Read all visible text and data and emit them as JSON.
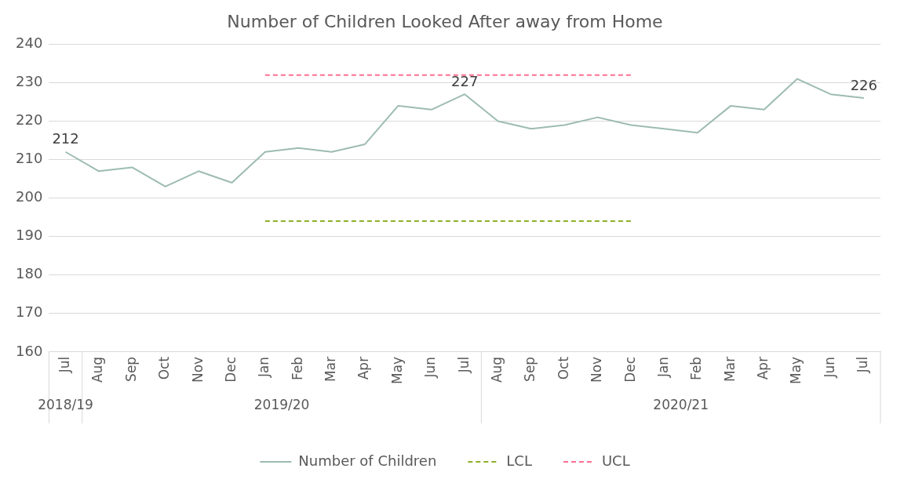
{
  "chart_data": {
    "type": "line",
    "title": "Number of Children Looked After away from Home",
    "categories": [
      "Jul",
      "Aug",
      "Sep",
      "Oct",
      "Nov",
      "Dec",
      "Jan",
      "Feb",
      "Mar",
      "Apr",
      "May",
      "Jun",
      "Jul",
      "Aug",
      "Sep",
      "Oct",
      "Nov",
      "Dec",
      "Jan",
      "Feb",
      "Mar",
      "Apr",
      "May",
      "Jun",
      "Jul"
    ],
    "series": [
      {
        "name": "Number of Children",
        "color": "#9dbcb0",
        "line_style": "solid",
        "values": [
          212,
          207,
          208,
          203,
          207,
          204,
          212,
          213,
          212,
          214,
          224,
          223,
          227,
          220,
          218,
          219,
          221,
          219,
          218,
          217,
          224,
          223,
          231,
          227,
          226
        ],
        "value_labels": [
          "212",
          null,
          null,
          null,
          null,
          null,
          null,
          null,
          null,
          null,
          null,
          null,
          "227",
          null,
          null,
          null,
          null,
          null,
          null,
          null,
          null,
          null,
          null,
          null,
          "226"
        ]
      },
      {
        "name": "LCL",
        "color": "#8db02a",
        "line_style": "dashed",
        "values": [
          null,
          null,
          null,
          null,
          null,
          null,
          194,
          194,
          194,
          194,
          194,
          194,
          194,
          194,
          194,
          194,
          194,
          194,
          null,
          null,
          null,
          null,
          null,
          null,
          null
        ]
      },
      {
        "name": "UCL",
        "color": "#ff6f8f",
        "line_style": "dashed",
        "values": [
          null,
          null,
          null,
          null,
          null,
          null,
          232,
          232,
          232,
          232,
          232,
          232,
          232,
          232,
          232,
          232,
          232,
          232,
          null,
          null,
          null,
          null,
          null,
          null,
          null
        ]
      }
    ],
    "annotations": [
      "2018/19",
      "2019/20",
      "2020/21"
    ],
    "ylim": [
      160,
      240
    ],
    "yticks": [
      160,
      170,
      180,
      190,
      200,
      210,
      220,
      230,
      240
    ],
    "grid": "y",
    "legend": "bottom",
    "marker": "none"
  }
}
